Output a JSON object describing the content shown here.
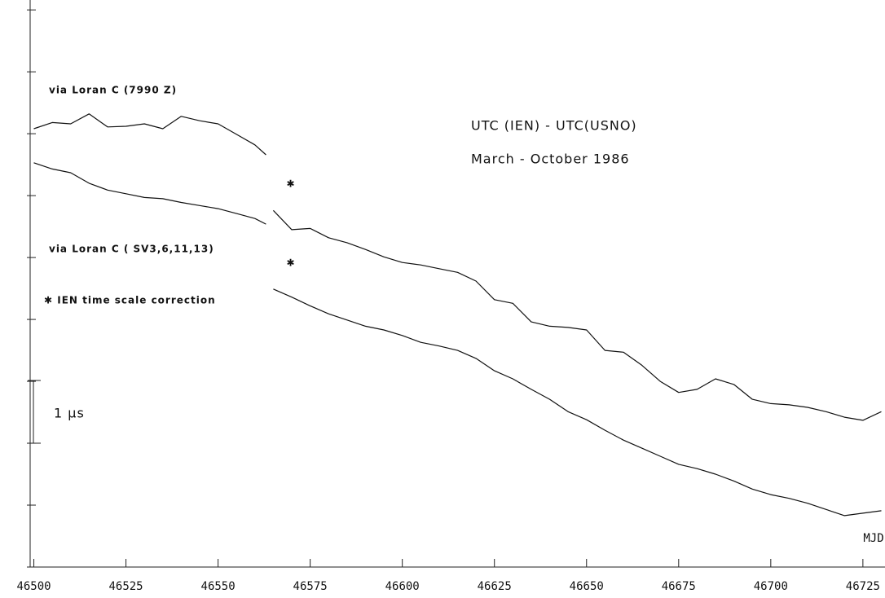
{
  "chart_data": {
    "type": "line",
    "x": [
      46500,
      46505,
      46510,
      46515,
      46520,
      46525,
      46530,
      46535,
      46540,
      46545,
      46550,
      46555,
      46560,
      46563,
      46564,
      46565,
      46570,
      46575,
      46580,
      46585,
      46590,
      46595,
      46600,
      46605,
      46610,
      46615,
      46620,
      46625,
      46630,
      46635,
      46640,
      46645,
      46650,
      46655,
      46660,
      46665,
      46670,
      46675,
      46680,
      46685,
      46690,
      46695,
      46700,
      46705,
      46710,
      46715,
      46720,
      46725,
      46730
    ],
    "series": [
      {
        "name": "via Loran C (7990 Z)",
        "color": "#111111",
        "values": [
          7.08,
          7.18,
          7.16,
          7.32,
          7.11,
          7.12,
          7.16,
          7.08,
          7.28,
          7.21,
          7.16,
          6.99,
          6.82,
          6.66,
          null,
          5.76,
          5.45,
          5.47,
          5.32,
          5.24,
          5.13,
          5.01,
          4.92,
          4.88,
          4.82,
          4.76,
          4.62,
          4.32,
          4.26,
          3.96,
          3.89,
          3.87,
          3.83,
          3.5,
          3.47,
          3.26,
          3.0,
          2.82,
          2.87,
          3.04,
          2.95,
          2.71,
          2.64,
          2.62,
          2.58,
          2.51,
          2.42,
          2.37,
          2.51
        ]
      },
      {
        "name": "via Loran C ( SV3,6,11,13)",
        "color": "#111111",
        "values": [
          6.53,
          6.43,
          6.37,
          6.2,
          6.09,
          6.03,
          5.97,
          5.95,
          5.89,
          5.84,
          5.79,
          5.71,
          5.63,
          5.54,
          null,
          4.49,
          4.36,
          4.22,
          4.09,
          3.99,
          3.89,
          3.83,
          3.74,
          3.63,
          3.57,
          3.5,
          3.37,
          3.17,
          3.04,
          2.87,
          2.71,
          2.51,
          2.38,
          2.21,
          2.05,
          1.92,
          1.79,
          1.66,
          1.59,
          1.5,
          1.39,
          1.26,
          1.17,
          1.11,
          1.03,
          0.93,
          0.83,
          0.87,
          0.91
        ]
      }
    ],
    "xlim": [
      46499,
      46731
    ],
    "xticks": [
      46500,
      46525,
      46550,
      46575,
      46600,
      46625,
      46650,
      46675,
      46700,
      46725
    ],
    "ylim": [
      0,
      9.16
    ],
    "yticks": [
      0,
      1,
      2,
      3,
      4,
      5,
      6,
      7,
      8,
      9
    ],
    "title": "UTC (IEN) - UTC(USNO)",
    "subtitle": "March - October 1986",
    "x_label": "MJD",
    "scale_label": "1 µs",
    "correction_marker": "✱",
    "correction_note": "✱ IEN time scale correction"
  }
}
